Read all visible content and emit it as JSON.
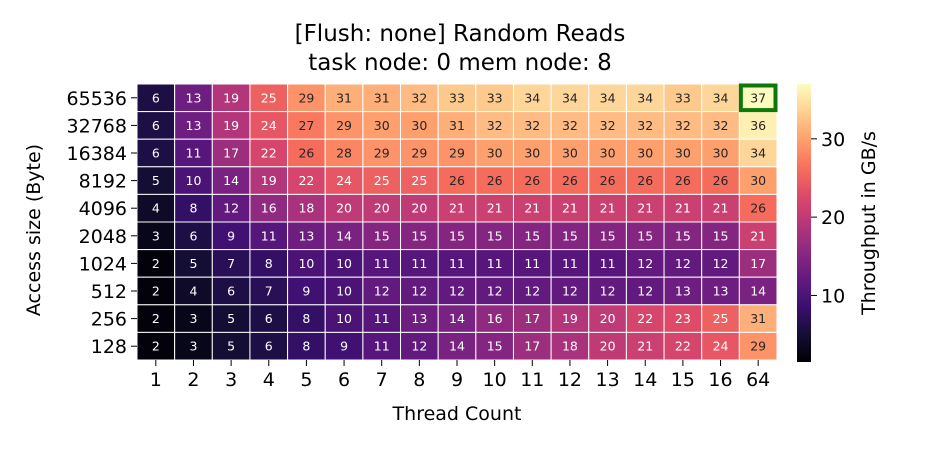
{
  "chart_data": {
    "type": "heatmap",
    "title": [
      "[Flush: none] Random Reads",
      "task node: 0 mem node: 8"
    ],
    "xlabel": "Thread Count",
    "ylabel": "Access size (Byte)",
    "colorbar_label": "Throughput in GB/s",
    "colormap": "magma",
    "value_range": [
      1.5,
      37
    ],
    "colorbar_ticks": [
      10,
      20,
      30
    ],
    "x_categories": [
      "1",
      "2",
      "3",
      "4",
      "5",
      "6",
      "7",
      "8",
      "9",
      "10",
      "11",
      "12",
      "13",
      "14",
      "15",
      "16",
      "64"
    ],
    "y_categories": [
      "65536",
      "32768",
      "16384",
      "8192",
      "4096",
      "2048",
      "1024",
      "512",
      "256",
      "128"
    ],
    "values": [
      [
        6,
        13,
        19,
        25,
        29,
        31,
        31,
        32,
        33,
        33,
        34,
        34,
        34,
        34,
        33,
        34,
        37
      ],
      [
        6,
        13,
        19,
        24,
        27,
        29,
        30,
        30,
        31,
        32,
        32,
        32,
        32,
        32,
        32,
        32,
        36
      ],
      [
        6,
        11,
        17,
        22,
        26,
        28,
        29,
        29,
        29,
        30,
        30,
        30,
        30,
        30,
        30,
        30,
        34
      ],
      [
        5,
        10,
        14,
        19,
        22,
        24,
        25,
        25,
        26,
        26,
        26,
        26,
        26,
        26,
        26,
        26,
        30
      ],
      [
        4,
        8,
        12,
        16,
        18,
        20,
        20,
        20,
        21,
        21,
        21,
        21,
        21,
        21,
        21,
        21,
        26
      ],
      [
        3,
        6,
        9,
        11,
        13,
        14,
        15,
        15,
        15,
        15,
        15,
        15,
        15,
        15,
        15,
        15,
        21
      ],
      [
        2,
        5,
        7,
        8,
        10,
        10,
        11,
        11,
        11,
        11,
        11,
        11,
        11,
        12,
        12,
        12,
        17
      ],
      [
        2,
        4,
        6,
        7,
        9,
        10,
        12,
        12,
        12,
        12,
        12,
        12,
        12,
        12,
        13,
        13,
        14
      ],
      [
        2,
        3,
        5,
        6,
        8,
        10,
        11,
        13,
        14,
        16,
        17,
        19,
        20,
        22,
        23,
        25,
        31
      ],
      [
        2,
        3,
        5,
        6,
        8,
        9,
        11,
        12,
        14,
        15,
        17,
        18,
        20,
        21,
        22,
        24,
        29
      ]
    ],
    "highlight": {
      "row": "65536",
      "col": "64",
      "color": "#0b7a0b"
    }
  }
}
